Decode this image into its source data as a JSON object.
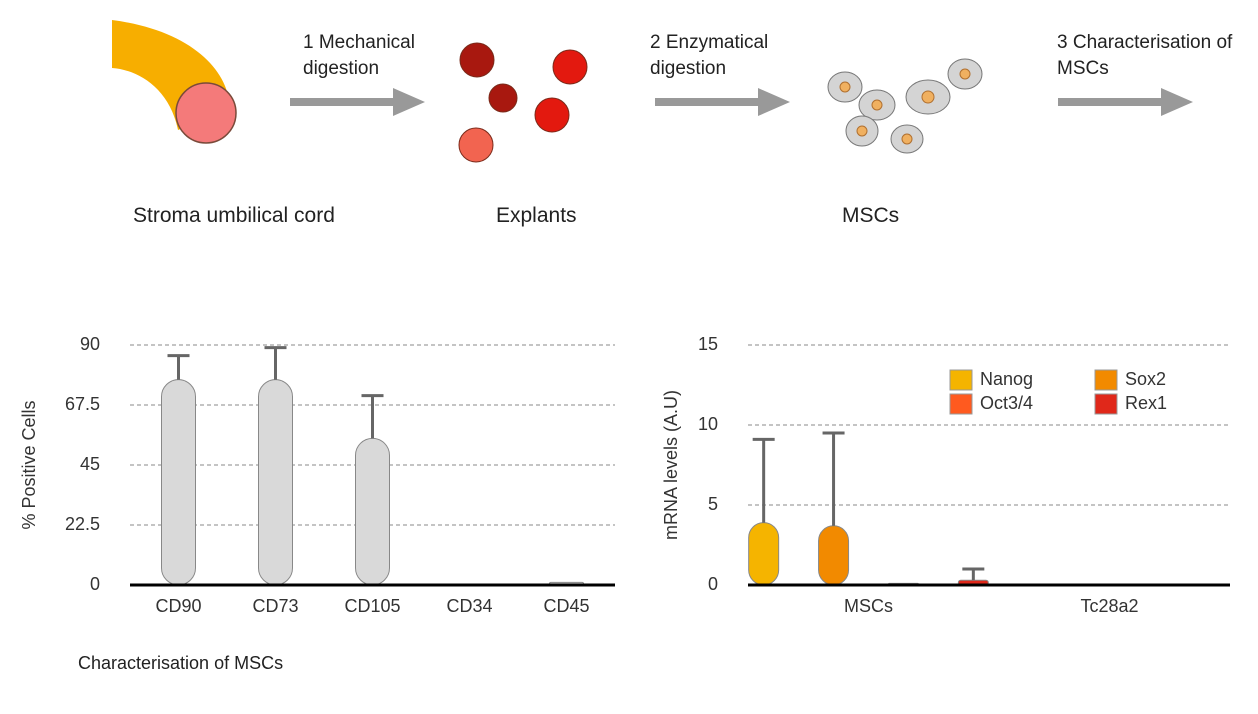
{
  "diagram": {
    "steps": [
      "1 Mechanical digestion",
      "2 Enzymatical digestion",
      "3 Characterisation of MSCs"
    ],
    "stages": [
      "Stroma umbilical cord",
      "Explants",
      "MSCs"
    ]
  },
  "caption": "Characterisation of MSCs",
  "chart_data": [
    {
      "type": "bar",
      "ylabel": "% Positive Cells",
      "categories": [
        "CD90",
        "CD73",
        "CD105",
        "CD34",
        "CD45"
      ],
      "values": [
        77,
        77,
        55,
        0.3,
        1
      ],
      "errors": [
        9,
        12,
        16,
        0,
        0
      ],
      "color": "#d9d9d9",
      "ylim": [
        0,
        90
      ],
      "yticks": [
        0,
        22.5,
        45,
        67.5,
        90
      ],
      "grid": true
    },
    {
      "type": "grouped_bar",
      "ylabel": "mRNA levels (A.U)",
      "categories": [
        "MSCs",
        "Tc28a2"
      ],
      "series": [
        {
          "name": "Nanog",
          "color": "#f5b400",
          "values": [
            3.9,
            0
          ],
          "errors": [
            5.2,
            0
          ]
        },
        {
          "name": "Sox2",
          "color": "#f28a00",
          "values": [
            3.7,
            0
          ],
          "errors": [
            5.8,
            0
          ]
        },
        {
          "name": "Oct3/4",
          "color": "#ff5a1f",
          "values": [
            0.1,
            0
          ],
          "errors": [
            0,
            0
          ]
        },
        {
          "name": "Rex1",
          "color": "#e0281a",
          "values": [
            0.3,
            0
          ],
          "errors": [
            0.7,
            0
          ]
        }
      ],
      "ylim": [
        0,
        15
      ],
      "yticks": [
        0,
        5,
        10,
        15
      ],
      "grid": true,
      "legend": {
        "position": "upper right",
        "columns": 2
      }
    }
  ]
}
